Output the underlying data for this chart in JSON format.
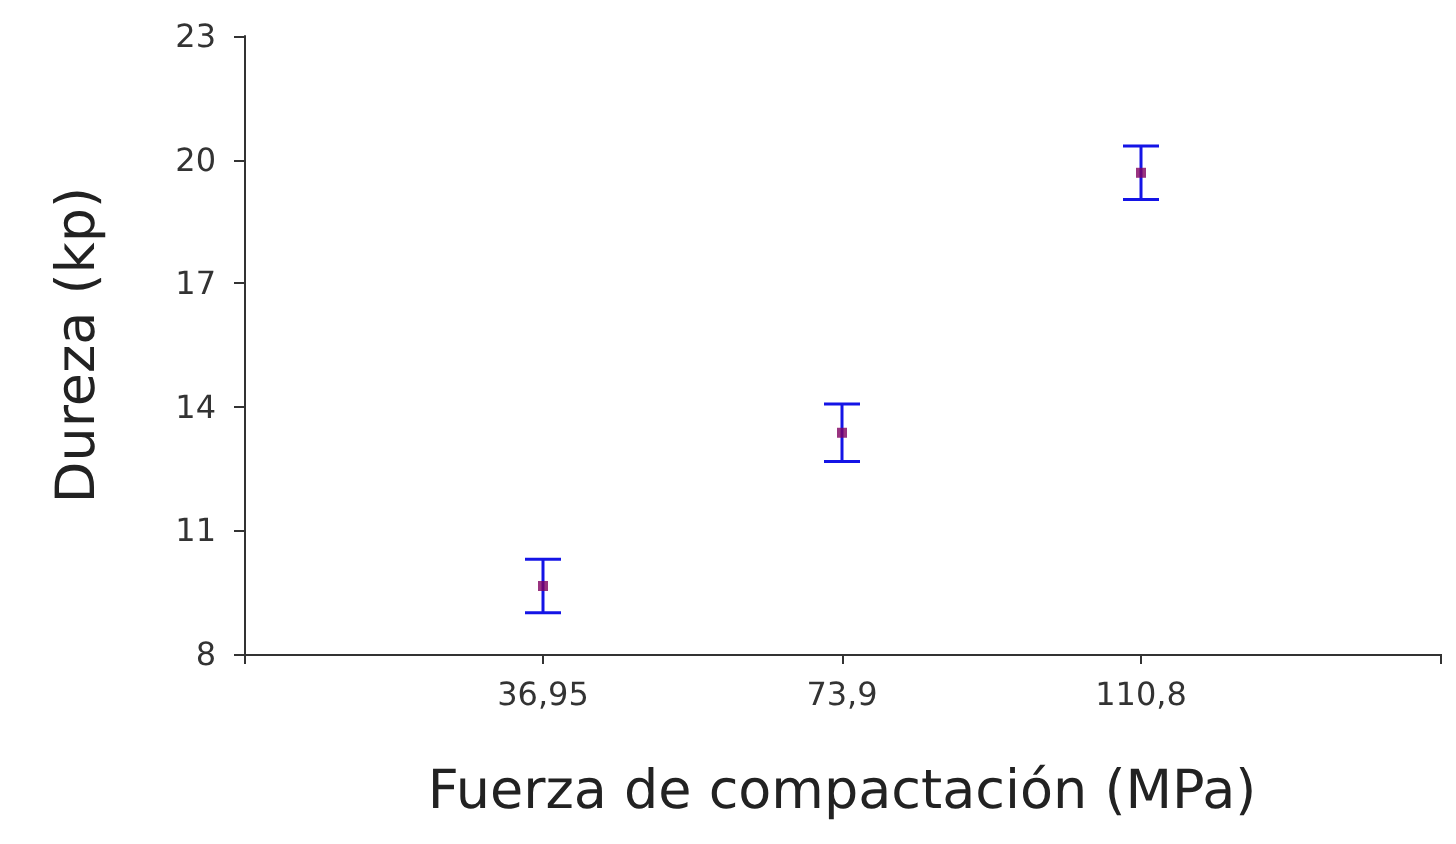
{
  "chart_data": {
    "type": "scatter",
    "xlabel": "Fuerza de compactación (MPa)",
    "ylabel": "Dureza (kp)",
    "categories": [
      "36,95",
      "73,9",
      "110,8"
    ],
    "series": [
      {
        "color": "#800060",
        "values": [
          9.65,
          13.37,
          19.68
        ],
        "errors": [
          0.65,
          0.7,
          0.65
        ]
      }
    ],
    "ylim": [
      8,
      23
    ],
    "yticks": [
      8,
      11,
      14,
      17,
      20,
      23
    ],
    "marker": "square"
  }
}
